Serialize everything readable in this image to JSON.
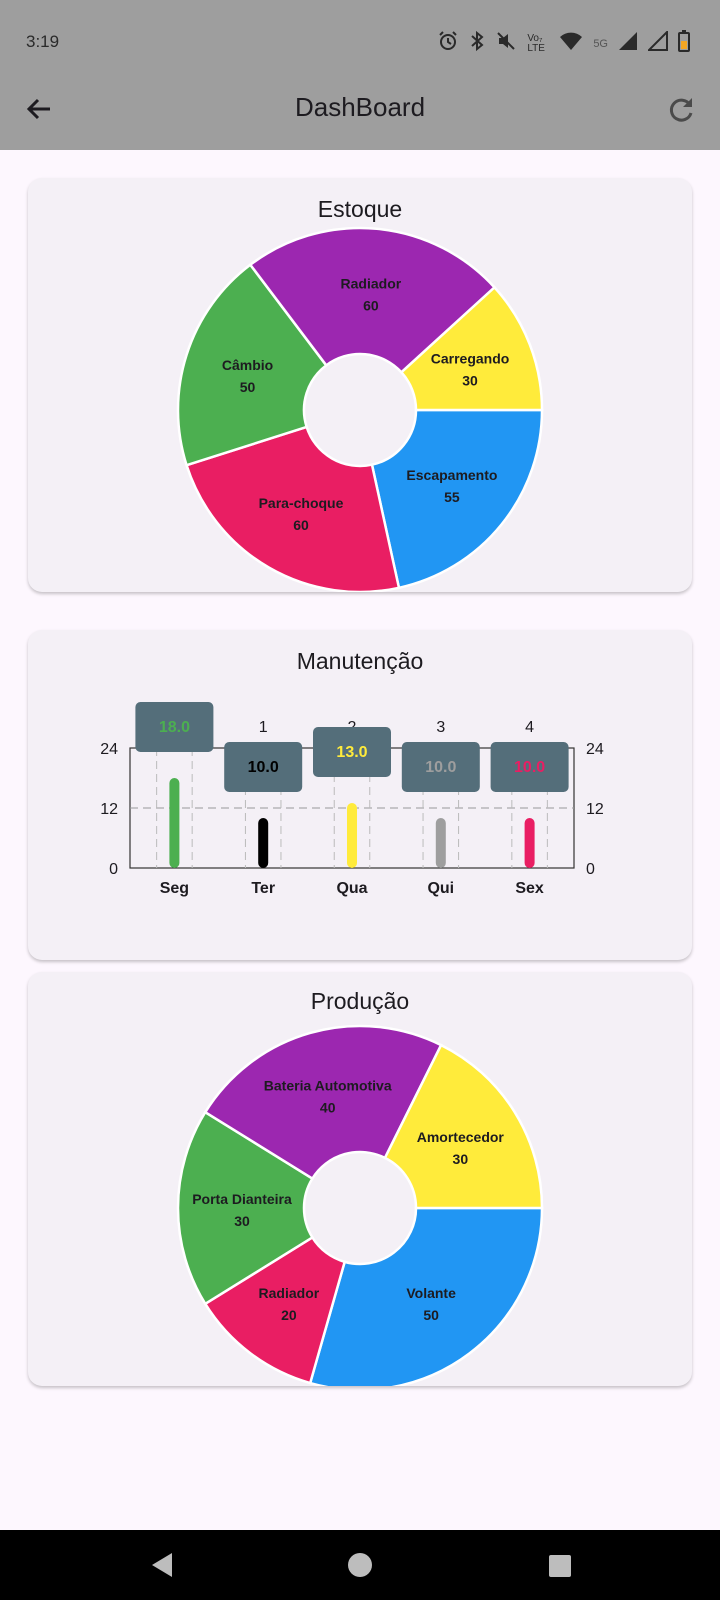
{
  "status_bar": {
    "time": "3:19",
    "lte_label": "Vo₇ LTE",
    "network_label": "5G",
    "icons": [
      "alarm-icon",
      "bluetooth-icon",
      "mute-icon",
      "lte-icon",
      "wifi-icon",
      "signal-icon",
      "signal-icon",
      "battery-icon"
    ]
  },
  "app_bar": {
    "title": "DashBoard",
    "back_icon": "arrow-left-icon",
    "refresh_icon": "refresh-icon"
  },
  "cards": {
    "estoque": {
      "title": "Estoque"
    },
    "manutencao": {
      "title": "Manutenção"
    },
    "producao": {
      "title": "Produção"
    }
  },
  "chart_data": [
    {
      "type": "pie",
      "title": "Estoque",
      "donut": true,
      "slices": [
        {
          "label": "Escapamento",
          "value": 55,
          "color": "#2196f3"
        },
        {
          "label": "Para-choque",
          "value": 60,
          "color": "#e91e63"
        },
        {
          "label": "Câmbio",
          "value": 50,
          "color": "#4caf50"
        },
        {
          "label": "Radiador",
          "value": 60,
          "color": "#9c27b0"
        },
        {
          "label": "Carregando",
          "value": 30,
          "color": "#ffeb3b"
        }
      ]
    },
    {
      "type": "bar",
      "title": "Manutenção",
      "categories": [
        "Seg",
        "Ter",
        "Qua",
        "Qui",
        "Sex"
      ],
      "top_labels": [
        "",
        "1",
        "2",
        "3",
        "4"
      ],
      "values": [
        18.0,
        10.0,
        13.0,
        10.0,
        10.0
      ],
      "tooltips": [
        "18.0",
        "10.0",
        "13.0",
        "10.0",
        "10.0"
      ],
      "colors": [
        "#4caf50",
        "#000000",
        "#ffeb3b",
        "#9e9e9e",
        "#e91e63"
      ],
      "tooltip_bg": "#546e7a",
      "ylim": [
        0,
        24
      ],
      "yticks": [
        "0",
        "12",
        "24"
      ],
      "grid": true
    },
    {
      "type": "pie",
      "title": "Produção",
      "donut": true,
      "slices": [
        {
          "label": "Volante",
          "value": 50,
          "color": "#2196f3"
        },
        {
          "label": "Radiador",
          "value": 20,
          "color": "#e91e63"
        },
        {
          "label": "Porta Dianteira",
          "value": 30,
          "color": "#4caf50"
        },
        {
          "label": "Bateria Automotiva",
          "value": 40,
          "color": "#9c27b0"
        },
        {
          "label": "Amortecedor",
          "value": 30,
          "color": "#ffeb3b"
        }
      ]
    }
  ],
  "nav_bar": {
    "icons": [
      "nav-back-icon",
      "nav-home-icon",
      "nav-recents-icon"
    ]
  }
}
